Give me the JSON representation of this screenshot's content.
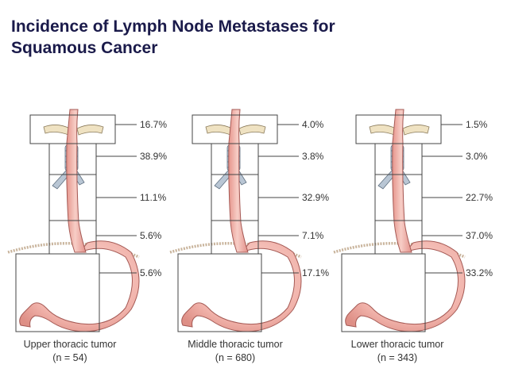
{
  "title": {
    "line1": "Incidence of Lymph Node Metastases for",
    "line2": "Squamous Cancer"
  },
  "panels": [
    {
      "caption": "Upper thoracic tumor",
      "n_label": "(n = 54)",
      "percentages": [
        "16.7%",
        "38.9%",
        "11.1%",
        "5.6%",
        "5.6%"
      ]
    },
    {
      "caption": "Middle thoracic tumor",
      "n_label": "(n = 680)",
      "percentages": [
        "4.0%",
        "3.8%",
        "32.9%",
        "7.1%",
        "17.1%"
      ]
    },
    {
      "caption": "Lower thoracic tumor",
      "n_label": "(n = 343)",
      "percentages": [
        "1.5%",
        "3.0%",
        "22.7%",
        "37.0%",
        "33.2%"
      ]
    }
  ],
  "colors": {
    "title": "#1a1a4a",
    "esophagus": "#f2b7b0",
    "esophagus_edge": "#a55a55",
    "stomach": "#f4c2bb",
    "trachea": "#b9c6d4",
    "clavicle": "#efe2c2",
    "diaphragm": "#c9b49c",
    "lines": "#444444"
  }
}
